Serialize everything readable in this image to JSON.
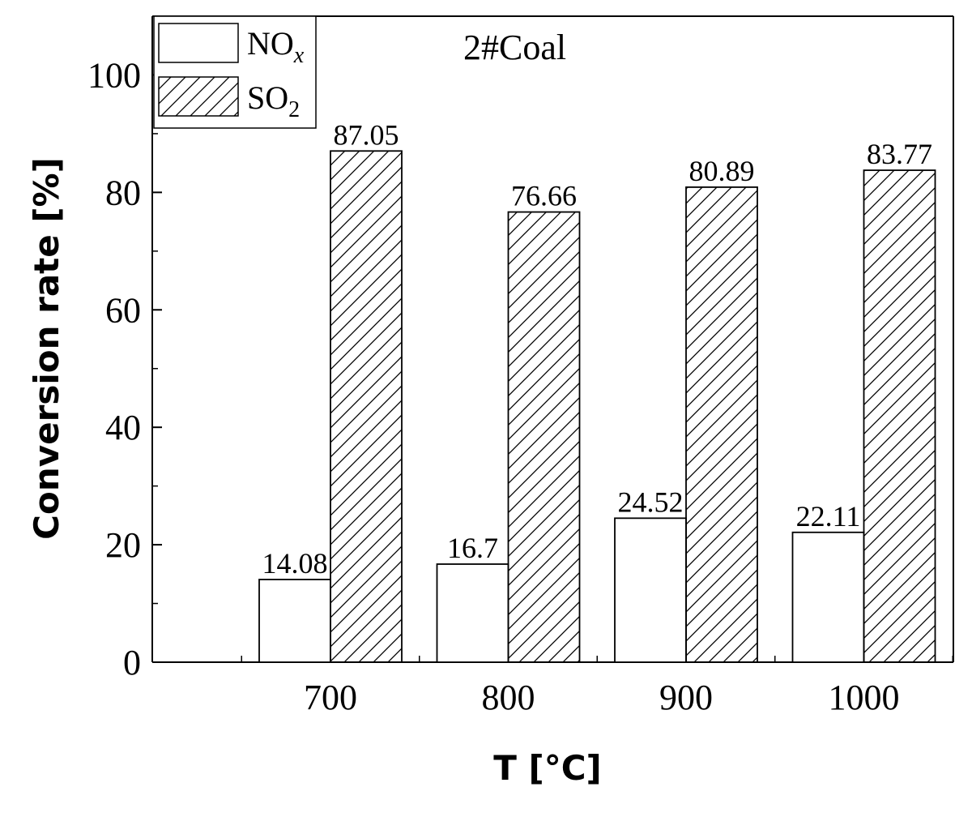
{
  "chart_data": {
    "type": "bar",
    "title": "2#Coal",
    "xlabel": "T [°C]",
    "ylabel": "Conversion rate [%]",
    "categories": [
      "700",
      "800",
      "900",
      "1000"
    ],
    "series": [
      {
        "name": "NO",
        "name_sub": "x",
        "pattern": "none",
        "values": [
          14.08,
          16.7,
          24.52,
          22.11
        ],
        "labels": [
          "14.08",
          "16.7",
          "24.52",
          "22.11"
        ]
      },
      {
        "name": "SO",
        "name_sub": "2",
        "pattern": "diagonal-hatch",
        "values": [
          87.05,
          76.66,
          80.89,
          83.77
        ],
        "labels": [
          "87.05",
          "76.66",
          "80.89",
          "83.77"
        ]
      }
    ],
    "ylim": [
      0,
      110
    ],
    "yticks": [
      0,
      20,
      40,
      60,
      80,
      100
    ],
    "yticks_minor": [
      10,
      30,
      50,
      70,
      90,
      110
    ],
    "legend": "top-left",
    "grid": false,
    "colors": {
      "bar_stroke": "#000000",
      "fill": "#ffffff",
      "hatch": "#000000"
    }
  }
}
